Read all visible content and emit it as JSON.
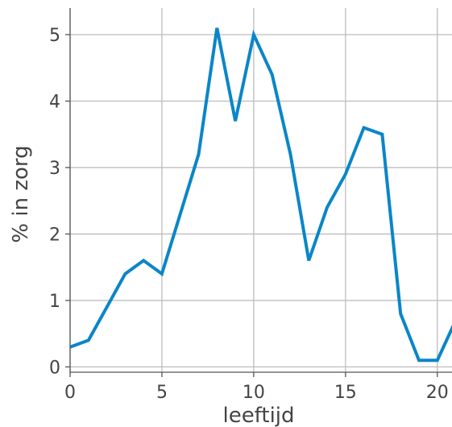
{
  "chart_data": {
    "type": "line",
    "title": "",
    "xlabel": "leeftijd",
    "ylabel": "% in zorg",
    "xlim": [
      0,
      20.8
    ],
    "ylim": [
      -0.08,
      5.4
    ],
    "xticks": [
      0,
      5,
      10,
      15,
      20
    ],
    "yticks": [
      0,
      1,
      2,
      3,
      4,
      5
    ],
    "grid": true,
    "legend": "none",
    "series": [
      {
        "color": "#0a86c8",
        "x": [
          0,
          1,
          2,
          3,
          4,
          5,
          6,
          7,
          8,
          9,
          10,
          11,
          12,
          13,
          14,
          15,
          16,
          17,
          18,
          19,
          20,
          21
        ],
        "y": [
          0.3,
          0.4,
          0.9,
          1.4,
          1.6,
          1.4,
          2.3,
          3.2,
          5.1,
          3.7,
          5.0,
          4.4,
          3.2,
          1.6,
          2.4,
          2.9,
          3.6,
          3.5,
          0.8,
          0.1,
          0.1,
          0.7
        ]
      }
    ]
  }
}
